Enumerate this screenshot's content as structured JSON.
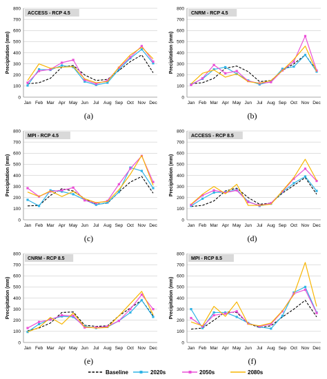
{
  "figure": {
    "legend": [
      {
        "label": "Baseline",
        "color": "#000000",
        "style": "dashed",
        "marker": "none"
      },
      {
        "label": "2020s",
        "color": "#2eb3e6",
        "style": "solid",
        "marker": "square"
      },
      {
        "label": "2050s",
        "color": "#ea4fd6",
        "style": "solid",
        "marker": "square"
      },
      {
        "label": "2080s",
        "color": "#f7b500",
        "style": "solid",
        "marker": "none"
      }
    ]
  },
  "chart_data": [
    {
      "type": "line",
      "title": "ACCESS - RCP 4.5",
      "caption": "(a)",
      "ylabel": "Precipitation (mm)",
      "ylim": [
        0,
        800
      ],
      "yticks": [
        0,
        100,
        200,
        300,
        400,
        500,
        600,
        700,
        800
      ],
      "grid": true,
      "categories": [
        "Jan",
        "Feb",
        "Mar",
        "Apr",
        "May",
        "Jun",
        "Jul",
        "Aug",
        "Sep",
        "Oct",
        "Nov",
        "Dec"
      ],
      "series": [
        {
          "name": "Baseline",
          "values": [
            120,
            130,
            170,
            270,
            285,
            200,
            150,
            160,
            240,
            320,
            380,
            220
          ]
        },
        {
          "name": "2020s",
          "values": [
            105,
            250,
            245,
            285,
            270,
            140,
            110,
            130,
            250,
            350,
            430,
            305
          ]
        },
        {
          "name": "2050s",
          "values": [
            130,
            235,
            250,
            310,
            335,
            155,
            120,
            150,
            265,
            360,
            460,
            320
          ]
        },
        {
          "name": "2080s",
          "values": [
            150,
            300,
            260,
            270,
            275,
            165,
            130,
            140,
            270,
            380,
            450,
            345
          ]
        }
      ]
    },
    {
      "type": "line",
      "title": "CNRM - RCP 4.5",
      "caption": "(b)",
      "ylabel": "Precipitation (mm)",
      "ylim": [
        0,
        800
      ],
      "yticks": [
        0,
        100,
        200,
        300,
        400,
        500,
        600,
        700,
        800
      ],
      "grid": true,
      "categories": [
        "Jan",
        "Feb",
        "Mar",
        "Apr",
        "May",
        "Jun",
        "Jul",
        "Aug",
        "Sep",
        "Oct",
        "Nov",
        "Dec"
      ],
      "series": [
        {
          "name": "Baseline",
          "values": [
            120,
            130,
            170,
            260,
            280,
            230,
            140,
            150,
            240,
            300,
            380,
            240
          ]
        },
        {
          "name": "2020s",
          "values": [
            115,
            165,
            250,
            270,
            210,
            150,
            115,
            140,
            255,
            275,
            380,
            230
          ]
        },
        {
          "name": "2050s",
          "values": [
            110,
            170,
            290,
            215,
            235,
            145,
            125,
            135,
            240,
            320,
            550,
            240
          ]
        },
        {
          "name": "2080s",
          "values": [
            120,
            215,
            245,
            180,
            210,
            140,
            125,
            150,
            240,
            340,
            460,
            230
          ]
        }
      ]
    },
    {
      "type": "line",
      "title": "MPI - RCP 4.5",
      "caption": "(c)",
      "ylabel": "Precipitation (mm)",
      "ylim": [
        0,
        800
      ],
      "yticks": [
        0,
        100,
        200,
        300,
        400,
        500,
        600,
        700,
        800
      ],
      "grid": true,
      "categories": [
        "Jan",
        "Feb",
        "Mar",
        "Apr",
        "May",
        "Jun",
        "Jul",
        "Aug",
        "Sep",
        "Oct",
        "Nov",
        "Dec"
      ],
      "series": [
        {
          "name": "Baseline",
          "values": [
            125,
            130,
            220,
            280,
            260,
            190,
            140,
            150,
            250,
            340,
            390,
            240
          ]
        },
        {
          "name": "2020s",
          "values": [
            180,
            125,
            265,
            255,
            230,
            180,
            135,
            155,
            250,
            470,
            440,
            285
          ]
        },
        {
          "name": "2050s",
          "values": [
            285,
            210,
            255,
            265,
            290,
            175,
            150,
            170,
            320,
            460,
            575,
            340
          ]
        },
        {
          "name": "2080s",
          "values": [
            250,
            210,
            260,
            210,
            255,
            190,
            155,
            165,
            270,
            410,
            580,
            310
          ]
        }
      ]
    },
    {
      "type": "line",
      "title": "ACCESS - RCP 8.5",
      "caption": "(d)",
      "ylabel": "Precipitation (mm)",
      "ylim": [
        0,
        800
      ],
      "yticks": [
        0,
        100,
        200,
        300,
        400,
        500,
        600,
        700,
        800
      ],
      "grid": true,
      "categories": [
        "Jan",
        "Feb",
        "Mar",
        "Apr",
        "May",
        "Jun",
        "Jul",
        "Aug",
        "Sep",
        "Oct",
        "Nov",
        "Dec"
      ],
      "series": [
        {
          "name": "Baseline",
          "values": [
            120,
            130,
            170,
            260,
            285,
            200,
            140,
            150,
            240,
            310,
            380,
            230
          ]
        },
        {
          "name": "2020s",
          "values": [
            125,
            190,
            245,
            250,
            270,
            165,
            125,
            145,
            250,
            330,
            390,
            260
          ]
        },
        {
          "name": "2050s",
          "values": [
            135,
            220,
            265,
            245,
            265,
            160,
            130,
            150,
            255,
            370,
            460,
            350
          ]
        },
        {
          "name": "2080s",
          "values": [
            140,
            230,
            300,
            235,
            320,
            130,
            130,
            140,
            260,
            380,
            545,
            355
          ]
        }
      ]
    },
    {
      "type": "line",
      "title": "CNRM - RCP 8.5",
      "caption": "(e)",
      "ylabel": "Precipitation (mm)",
      "ylim": [
        0,
        800
      ],
      "yticks": [
        0,
        100,
        200,
        300,
        400,
        500,
        600,
        700,
        800
      ],
      "grid": true,
      "categories": [
        "Jan",
        "Feb",
        "Mar",
        "Apr",
        "May",
        "Jun",
        "Jul",
        "Aug",
        "Sep",
        "Oct",
        "Nov",
        "Dec"
      ],
      "series": [
        {
          "name": "Baseline",
          "values": [
            105,
            130,
            175,
            270,
            275,
            155,
            145,
            150,
            240,
            310,
            380,
            240
          ]
        },
        {
          "name": "2020s",
          "values": [
            95,
            165,
            210,
            235,
            230,
            145,
            130,
            140,
            195,
            270,
            380,
            230
          ]
        },
        {
          "name": "2050s",
          "values": [
            130,
            185,
            205,
            245,
            240,
            135,
            135,
            145,
            195,
            300,
            430,
            300
          ]
        },
        {
          "name": "2080s",
          "values": [
            95,
            135,
            225,
            165,
            265,
            140,
            130,
            135,
            240,
            350,
            460,
            250
          ]
        }
      ]
    },
    {
      "type": "line",
      "title": "MPI - RCP 8.5",
      "caption": "(f)",
      "ylabel": "Precipitation (mm)",
      "ylim": [
        0,
        800
      ],
      "yticks": [
        0,
        100,
        200,
        300,
        400,
        500,
        600,
        700,
        800
      ],
      "grid": true,
      "categories": [
        "Jan",
        "Feb",
        "Mar",
        "Apr",
        "May",
        "Jun",
        "Jul",
        "Aug",
        "Sep",
        "Oct",
        "Nov",
        "Dec"
      ],
      "series": [
        {
          "name": "Baseline",
          "values": [
            120,
            130,
            200,
            275,
            270,
            170,
            135,
            150,
            230,
            300,
            380,
            230
          ]
        },
        {
          "name": "2020s",
          "values": [
            300,
            130,
            270,
            270,
            230,
            175,
            140,
            125,
            240,
            450,
            500,
            270
          ]
        },
        {
          "name": "2050s",
          "values": [
            220,
            145,
            245,
            260,
            280,
            170,
            145,
            165,
            280,
            440,
            475,
            265
          ]
        },
        {
          "name": "2080s",
          "values": [
            185,
            150,
            325,
            235,
            365,
            165,
            150,
            175,
            285,
            430,
            720,
            325
          ]
        }
      ]
    }
  ]
}
